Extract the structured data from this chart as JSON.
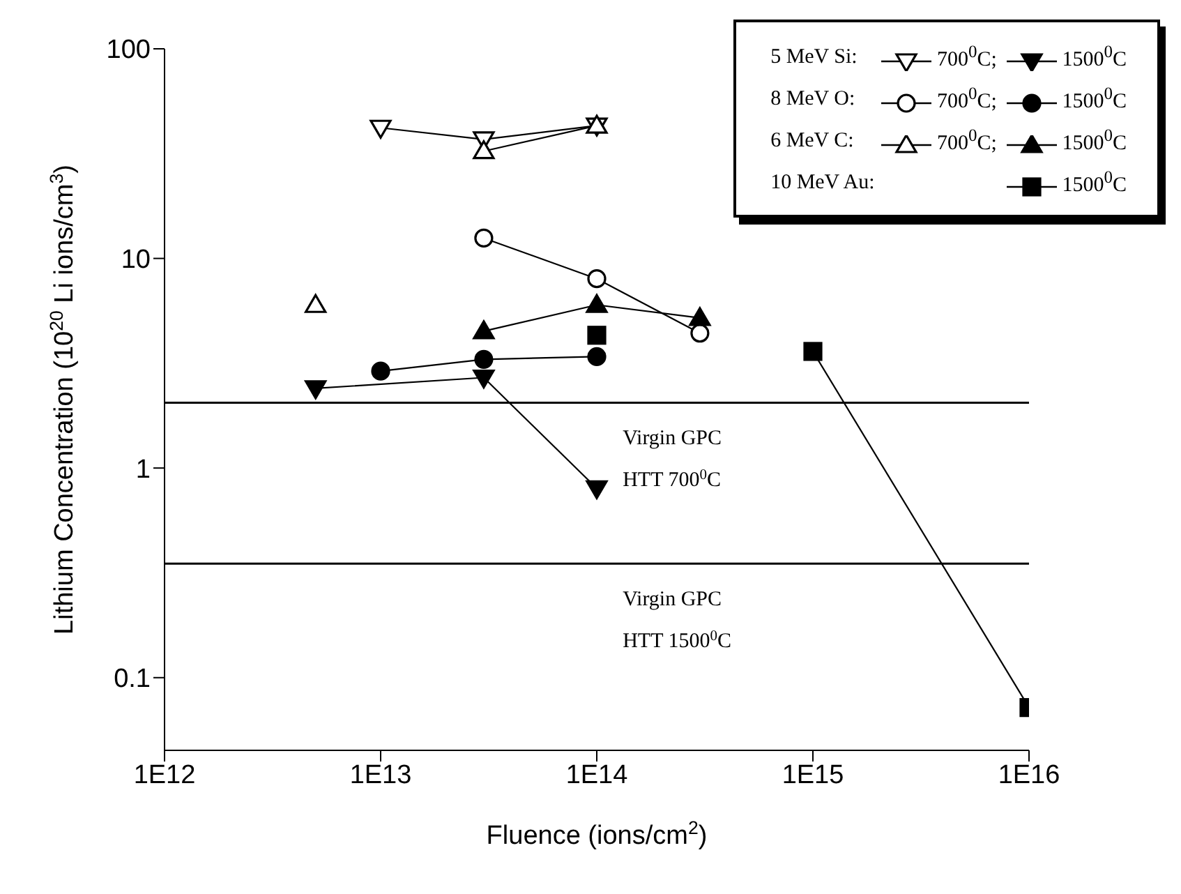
{
  "chart_data": {
    "type": "line",
    "xlabel": "Fluence (ions/cm$^{2}$)",
    "ylabel": "Lithium Concentration (10$^{20}$ Li ions/cm$^{3}$)",
    "log": "xy",
    "xlim": [
      1000000000000.0,
      1e+16
    ],
    "ylim": [
      0.045,
      100
    ],
    "xticks": [
      {
        "value": 1000000000000.0,
        "label": "1E12"
      },
      {
        "value": 10000000000000.0,
        "label": "1E13"
      },
      {
        "value": 100000000000000.0,
        "label": "1E14"
      },
      {
        "value": 1000000000000000.0,
        "label": "1E15"
      },
      {
        "value": 1e+16,
        "label": "1E16"
      }
    ],
    "yticks": [
      0.1,
      1,
      10,
      100
    ],
    "grid": false,
    "legend": "top right",
    "line_style": "solid",
    "series": [
      {
        "name": "700$^{0}$C;",
        "color": "#000000",
        "marker": "triangle-down-open",
        "x": [
          10000000000000.0,
          30000000000000.0,
          100000000000000.0
        ],
        "values": [
          42,
          37,
          43
        ]
      },
      {
        "name": "1500$^{0}$C",
        "color": "#000000",
        "marker": "triangle-down",
        "x": [
          5000000000000.0,
          30000000000000.0,
          100000000000000.0
        ],
        "values": [
          2.4,
          2.7,
          0.8
        ]
      },
      {
        "name": "700$^{0}$C;",
        "color": "#000000",
        "marker": "circle-open",
        "x": [
          30000000000000.0,
          100000000000000.0,
          300000000000000.0
        ],
        "values": [
          12.5,
          8,
          4.4
        ]
      },
      {
        "name": "1500$^{0}$C",
        "color": "#000000",
        "marker": "circle",
        "x": [
          10000000000000.0,
          30000000000000.0,
          100000000000000.0
        ],
        "values": [
          2.9,
          3.3,
          3.4
        ]
      },
      {
        "name": "700$^{0}$C;",
        "color": "#000000",
        "marker": "triangle-open",
        "x": [
          5000000000000.0,
          10000000000000.0,
          30000000000000.0,
          100000000000000.0
        ],
        "values": [
          6,
          null,
          32.5,
          43
        ]
      },
      {
        "name": "1500$^{0}$C",
        "color": "#000000",
        "marker": "triangle",
        "x": [
          30000000000000.0,
          100000000000000.0,
          300000000000000.0
        ],
        "values": [
          4.5,
          6,
          5.2
        ]
      },
      {
        "name": "1500$^{0}$C",
        "color": "#000000",
        "marker": "square",
        "x": [
          100000000000000.0,
          300000000000000.0,
          1000000000000000.0,
          1e+16
        ],
        "values": [
          4.3,
          null,
          3.6,
          0.072
        ]
      }
    ],
    "annotations": [
      "5 MeV Si:",
      "8 MeV O:",
      "6 MeV C:",
      "10 MeV Au:"
    ],
    "ref_lines": [
      {
        "axis": "y",
        "value": 2.05,
        "label": "Virgin GPC\nHTT 700$^{0}$C",
        "color": "#000000"
      },
      {
        "axis": "y",
        "value": 0.35,
        "label": "Virgin GPC\nHTT 1500$^{0}$C",
        "color": "#000000"
      }
    ]
  }
}
